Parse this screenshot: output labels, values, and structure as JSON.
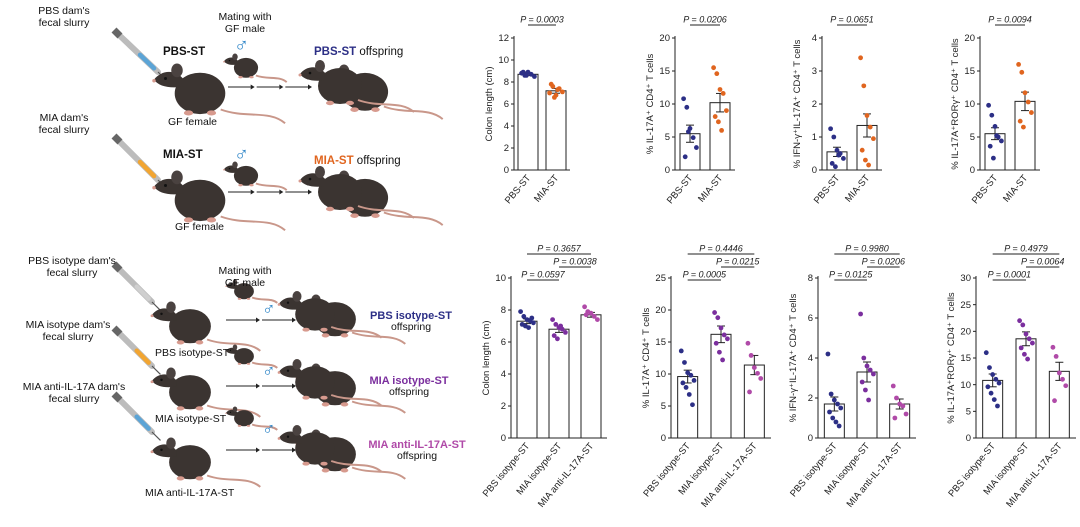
{
  "colors": {
    "pbs": "#2c2f86",
    "mia": "#e0651f",
    "mia_isotype": "#7b2f9e",
    "anti": "#b04aa8",
    "mouse_body": "#3b3431",
    "tail": "#c9978a",
    "syringe_orange": "#f2a531",
    "syringe_blue": "#5ba4d6",
    "male_symbol": "#2f86c8",
    "bar_border": "#222222"
  },
  "top_schematic": {
    "donor1": [
      "PBS dam's",
      "fecal slurry"
    ],
    "group1": "PBS-ST",
    "mating": [
      "Mating with",
      "GF male"
    ],
    "offspring1_strong": "PBS-ST",
    "offspring_word": " offspring",
    "female1": "GF female",
    "donor2": [
      "MIA dam's",
      "fecal slurry"
    ],
    "group2": "MIA-ST",
    "offspring2_strong": "MIA-ST",
    "female2": "GF female",
    "male_symbol": "♂",
    "arrow_icon": "→"
  },
  "bottom_schematic": {
    "donor1": [
      "PBS isotype dam's",
      "fecal slurry"
    ],
    "donor2": [
      "MIA isotype dam's",
      "fecal slurry"
    ],
    "donor3": [
      "MIA anti-IL-17A dam's",
      "fecal slurry"
    ],
    "mating": [
      "Mating with",
      "GF male"
    ],
    "group1": "PBS isotype-ST",
    "group2": "MIA isotype-ST",
    "group3": "MIA anti-IL-17A-ST",
    "offspring1": "PBS isotype-ST",
    "offspring2": "MIA isotype-ST",
    "offspring3": "MIA anti-IL-17A-ST",
    "offspring_word": "offspring",
    "male_symbol": "♂"
  },
  "chart_data": [
    {
      "type": "bar",
      "ylabel": "Colon length (cm)",
      "yticks": [
        "0",
        "2",
        "4",
        "6",
        "8",
        "10",
        "12"
      ],
      "ylim": [
        0,
        12
      ],
      "categories": [
        "PBS-ST",
        "MIA-ST"
      ],
      "means": [
        8.7,
        7.2
      ],
      "sem": [
        0.12,
        0.22
      ],
      "points": [
        [
          8.8,
          8.6,
          8.9,
          8.7,
          8.5,
          8.9,
          8.6
        ],
        [
          7.0,
          7.6,
          6.8,
          7.4,
          7.1,
          7.8,
          6.6,
          7.3
        ]
      ],
      "comparisons": [
        {
          "label": "P = 0.0003",
          "from": 0,
          "to": 1
        }
      ]
    },
    {
      "type": "bar",
      "ylabel": "% IL-17A⁺ CD4⁺ T cells",
      "yticks": [
        "0",
        "5",
        "10",
        "15",
        "20"
      ],
      "ylim": [
        0,
        20
      ],
      "categories": [
        "PBS-ST",
        "MIA-ST"
      ],
      "means": [
        5.5,
        10.2
      ],
      "sem": [
        1.3,
        1.4
      ],
      "points": [
        [
          10.8,
          9.5,
          6.3,
          4.9,
          3.4,
          2.0,
          5.8
        ],
        [
          15.5,
          14.6,
          12.2,
          11.6,
          9.0,
          8.1,
          7.3,
          6.0
        ]
      ],
      "comparisons": [
        {
          "label": "P = 0.0206",
          "from": 0,
          "to": 1
        }
      ]
    },
    {
      "type": "bar",
      "ylabel": "% IFN-γ⁺IL-17A⁺ CD4⁺ T cells",
      "yticks": [
        "0",
        "1",
        "2",
        "3",
        "4"
      ],
      "ylim": [
        0,
        4
      ],
      "categories": [
        "PBS-ST",
        "MIA-ST"
      ],
      "means": [
        0.55,
        1.35
      ],
      "sem": [
        0.14,
        0.35
      ],
      "points": [
        [
          1.25,
          1.0,
          0.6,
          0.5,
          0.35,
          0.2,
          0.1,
          0.45
        ],
        [
          3.4,
          2.55,
          1.65,
          1.3,
          0.95,
          0.6,
          0.3,
          0.15
        ]
      ],
      "comparisons": [
        {
          "label": "P = 0.0651",
          "from": 0,
          "to": 1
        }
      ]
    },
    {
      "type": "bar",
      "ylabel": "% IL-17A⁺RORγ⁺ CD4⁺ T cells",
      "yticks": [
        "0",
        "5",
        "10",
        "15",
        "20"
      ],
      "ylim": [
        0,
        20
      ],
      "categories": [
        "PBS-ST",
        "MIA-ST"
      ],
      "means": [
        5.5,
        10.4
      ],
      "sem": [
        0.9,
        1.4
      ],
      "points": [
        [
          9.8,
          8.3,
          6.6,
          5.0,
          4.4,
          3.6,
          1.8,
          5.2
        ],
        [
          16.0,
          14.8,
          11.7,
          10.3,
          8.7,
          7.4,
          6.5
        ]
      ],
      "comparisons": [
        {
          "label": "P = 0.0094",
          "from": 0,
          "to": 1
        }
      ]
    },
    {
      "type": "bar",
      "ylabel": "Colon length (cm)",
      "yticks": [
        "0",
        "2",
        "4",
        "6",
        "8",
        "10"
      ],
      "ylim": [
        0,
        10
      ],
      "categories": [
        "PBS isotype-ST",
        "MIA isotype-ST",
        "MIA anti-IL-17A-ST"
      ],
      "means": [
        7.3,
        6.8,
        7.7
      ],
      "sem": [
        0.15,
        0.2,
        0.15
      ],
      "points": [
        [
          7.9,
          7.6,
          7.4,
          7.3,
          7.2,
          7.1,
          7.0,
          6.9,
          7.5
        ],
        [
          7.4,
          7.1,
          6.9,
          6.8,
          6.6,
          6.4,
          6.2,
          7.0
        ],
        [
          8.2,
          7.9,
          7.8,
          7.6,
          7.4,
          7.7
        ]
      ],
      "comparisons": [
        {
          "label": "P = 0.3657",
          "from": 0,
          "to": 2
        },
        {
          "label": "P = 0.0038",
          "from": 1,
          "to": 2
        },
        {
          "label": "P = 0.0597",
          "from": 0,
          "to": 1
        }
      ]
    },
    {
      "type": "bar",
      "ylabel": "% IL-17A⁺ CD4⁺ T cells",
      "yticks": [
        "0",
        "5",
        "10",
        "15",
        "20",
        "25"
      ],
      "ylim": [
        0,
        25
      ],
      "categories": [
        "PBS isotype-ST",
        "MIA isotype-ST",
        "MIA anti-IL-17A-ST"
      ],
      "means": [
        9.6,
        16.2,
        11.4
      ],
      "sem": [
        1.0,
        1.3,
        1.5
      ],
      "points": [
        [
          13.6,
          11.8,
          10.2,
          9.8,
          9.0,
          8.6,
          7.9,
          6.8,
          5.2
        ],
        [
          19.6,
          18.8,
          17.2,
          16.1,
          15.5,
          14.8,
          13.4,
          12.2
        ],
        [
          14.8,
          12.9,
          11.0,
          10.1,
          9.3,
          7.2
        ]
      ],
      "comparisons": [
        {
          "label": "P = 0.4446",
          "from": 0,
          "to": 2
        },
        {
          "label": "P = 0.0215",
          "from": 1,
          "to": 2
        },
        {
          "label": "P = 0.0005",
          "from": 0,
          "to": 1
        }
      ]
    },
    {
      "type": "bar",
      "ylabel": "% IFN-γ⁺IL-17A⁺ CD4⁺ T cells",
      "yticks": [
        "0",
        "2",
        "4",
        "6",
        "8"
      ],
      "ylim": [
        0,
        8
      ],
      "categories": [
        "PBS isotype-ST",
        "MIA isotype-ST",
        "MIA anti-IL-17A-ST"
      ],
      "means": [
        1.7,
        3.3,
        1.7
      ],
      "sem": [
        0.35,
        0.5,
        0.25
      ],
      "points": [
        [
          4.2,
          2.2,
          1.9,
          1.7,
          1.5,
          1.3,
          1.0,
          0.8,
          0.6
        ],
        [
          6.2,
          4.0,
          3.6,
          3.4,
          3.2,
          2.8,
          2.4,
          1.9
        ],
        [
          2.6,
          2.0,
          1.7,
          1.6,
          1.2,
          1.0
        ]
      ],
      "comparisons": [
        {
          "label": "P = 0.9980",
          "from": 0,
          "to": 2
        },
        {
          "label": "P = 0.0206",
          "from": 1,
          "to": 2
        },
        {
          "label": "P = 0.0125",
          "from": 0,
          "to": 1
        }
      ]
    },
    {
      "type": "bar",
      "ylabel": "% IL-17A⁺RORγ⁺ CD4⁺ T cells",
      "yticks": [
        "0",
        "5",
        "10",
        "15",
        "20",
        "25",
        "30"
      ],
      "ylim": [
        0,
        30
      ],
      "categories": [
        "PBS isotype-ST",
        "MIA isotype-ST",
        "MIA anti-IL-17A-ST"
      ],
      "means": [
        10.8,
        18.6,
        12.5
      ],
      "sem": [
        1.2,
        1.3,
        1.7
      ],
      "points": [
        [
          16.0,
          13.2,
          11.9,
          11.0,
          10.3,
          9.6,
          8.4,
          7.2,
          6.0
        ],
        [
          22.0,
          21.2,
          19.5,
          18.6,
          17.8,
          16.9,
          15.7,
          14.8
        ],
        [
          17.0,
          15.3,
          12.2,
          11.0,
          9.8,
          7.0
        ]
      ],
      "comparisons": [
        {
          "label": "P = 0.4979",
          "from": 0,
          "to": 2
        },
        {
          "label": "P = 0.0064",
          "from": 1,
          "to": 2
        },
        {
          "label": "P = 0.0001",
          "from": 0,
          "to": 1
        }
      ]
    }
  ]
}
